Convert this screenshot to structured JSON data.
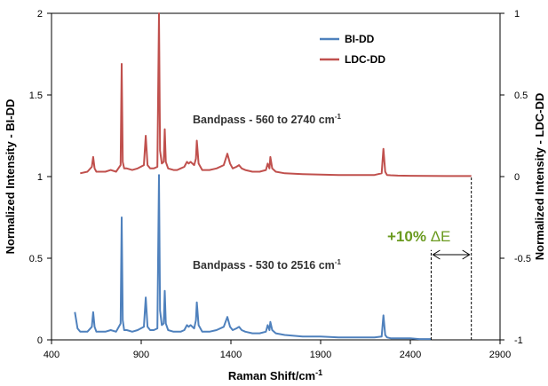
{
  "chart_data": {
    "type": "line",
    "xlabel": "Raman Shift/cm",
    "xlabel_sup": "-1",
    "ylabel_left": "Normalized Intensity - BI-DD",
    "ylabel_right": "Normalized Intensity - LDC-DD",
    "xlim": [
      400,
      2900
    ],
    "ylim_left": [
      0,
      2
    ],
    "ylim_right": [
      -1,
      1
    ],
    "x_ticks": [
      "400",
      "900",
      "1400",
      "1900",
      "2400",
      "2900"
    ],
    "y_left_ticks": [
      "0",
      "0.5",
      "1",
      "1.5",
      "2"
    ],
    "y_right_ticks": [
      "-1",
      "-0.5",
      "0",
      "0.5",
      "1"
    ],
    "grid": false,
    "legend_position": "top-right",
    "series": [
      {
        "name": "BI-DD",
        "axis": "left",
        "color": "#4f81bd",
        "x": [
          530,
          545,
          560,
          600,
          625,
          632,
          640,
          650,
          700,
          730,
          760,
          785,
          791,
          797,
          805,
          820,
          850,
          880,
          915,
          925,
          935,
          950,
          970,
          990,
          999,
          1005,
          1015,
          1025,
          1031,
          1037,
          1050,
          1080,
          1100,
          1120,
          1140,
          1155,
          1165,
          1175,
          1195,
          1205,
          1210,
          1220,
          1240,
          1280,
          1320,
          1360,
          1380,
          1395,
          1410,
          1430,
          1445,
          1460,
          1480,
          1520,
          1560,
          1595,
          1605,
          1615,
          1620,
          1630,
          1650,
          1700,
          1800,
          1900,
          2000,
          2100,
          2200,
          2240,
          2250,
          2260,
          2270,
          2290,
          2330,
          2400,
          2450,
          2516
        ],
        "y": [
          0.17,
          0.07,
          0.05,
          0.05,
          0.08,
          0.17,
          0.08,
          0.05,
          0.05,
          0.06,
          0.05,
          0.1,
          0.75,
          0.12,
          0.06,
          0.06,
          0.05,
          0.06,
          0.08,
          0.26,
          0.08,
          0.06,
          0.06,
          0.07,
          1.01,
          0.18,
          0.09,
          0.1,
          0.3,
          0.1,
          0.06,
          0.05,
          0.05,
          0.05,
          0.06,
          0.09,
          0.08,
          0.09,
          0.07,
          0.12,
          0.23,
          0.09,
          0.05,
          0.05,
          0.06,
          0.08,
          0.14,
          0.08,
          0.06,
          0.07,
          0.08,
          0.06,
          0.05,
          0.04,
          0.04,
          0.05,
          0.09,
          0.06,
          0.11,
          0.06,
          0.04,
          0.03,
          0.02,
          0.02,
          0.015,
          0.015,
          0.015,
          0.02,
          0.15,
          0.03,
          0.015,
          0.01,
          0.01,
          0.01,
          0.005,
          0.005
        ]
      },
      {
        "name": "LDC-DD",
        "axis": "right",
        "color": "#c0504d",
        "x": [
          560,
          600,
          625,
          632,
          640,
          650,
          700,
          730,
          760,
          785,
          791,
          797,
          805,
          820,
          850,
          880,
          915,
          925,
          935,
          950,
          970,
          990,
          999,
          1005,
          1015,
          1025,
          1031,
          1037,
          1050,
          1080,
          1100,
          1120,
          1140,
          1155,
          1165,
          1175,
          1195,
          1205,
          1210,
          1220,
          1240,
          1280,
          1320,
          1360,
          1380,
          1395,
          1410,
          1430,
          1445,
          1460,
          1480,
          1520,
          1560,
          1595,
          1605,
          1615,
          1620,
          1630,
          1650,
          1700,
          1800,
          1900,
          2000,
          2100,
          2200,
          2240,
          2250,
          2260,
          2270,
          2290,
          2330,
          2400,
          2500,
          2600,
          2740
        ],
        "y": [
          0.02,
          0.03,
          0.06,
          0.12,
          0.05,
          0.03,
          0.03,
          0.04,
          0.03,
          0.07,
          0.69,
          0.09,
          0.05,
          0.05,
          0.04,
          0.05,
          0.07,
          0.25,
          0.07,
          0.05,
          0.05,
          0.06,
          1.0,
          0.16,
          0.08,
          0.09,
          0.29,
          0.09,
          0.05,
          0.04,
          0.04,
          0.05,
          0.06,
          0.09,
          0.08,
          0.09,
          0.07,
          0.11,
          0.22,
          0.08,
          0.04,
          0.04,
          0.05,
          0.07,
          0.14,
          0.08,
          0.05,
          0.06,
          0.07,
          0.05,
          0.04,
          0.03,
          0.03,
          0.04,
          0.08,
          0.05,
          0.12,
          0.05,
          0.03,
          0.02,
          0.015,
          0.012,
          0.01,
          0.01,
          0.01,
          0.02,
          0.17,
          0.03,
          0.01,
          0.008,
          0.006,
          0.005,
          0.004,
          0.003,
          0.003
        ]
      }
    ],
    "annotations": [
      {
        "text": "Bandpass - 560 to 2740 cm",
        "sup": "-1",
        "x": 1700,
        "y": 1.42
      },
      {
        "text": "Bandpass - 530 to 2516 cm",
        "sup": "-1",
        "x": 1700,
        "y": 0.42
      },
      {
        "text": "+10% ",
        "symbol": "ΔE",
        "x": 2660,
        "y": 0.68,
        "color": "#6a9a1f"
      }
    ],
    "bandpass_edges": {
      "left_edge": 2516,
      "right_edge": 2740,
      "left_top": 0.55,
      "right_top": 1.0
    }
  }
}
